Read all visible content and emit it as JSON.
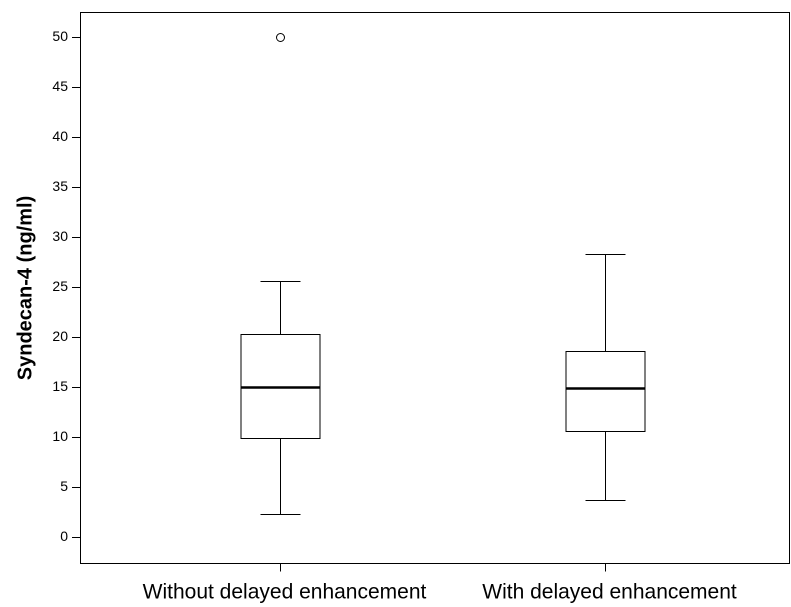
{
  "chart_data": {
    "type": "box",
    "y_label": "Syndecan-4 (ng/ml)",
    "categories": [
      "Without delayed enhancement",
      "With delayed enhancement"
    ],
    "boxes": [
      {
        "min": 2.3,
        "q1": 9.9,
        "median": 15,
        "q3": 20.3,
        "max": 25.6,
        "outliers": [
          50
        ]
      },
      {
        "min": 3.7,
        "q1": 10.6,
        "median": 14.9,
        "q3": 18.6,
        "max": 28.3,
        "outliers": []
      }
    ],
    "ylim": [
      -2.6,
      52.5
    ],
    "yticks": [
      0,
      5,
      10,
      15,
      20,
      25,
      30,
      35,
      40,
      45,
      50
    ],
    "color": "#ffffff"
  }
}
